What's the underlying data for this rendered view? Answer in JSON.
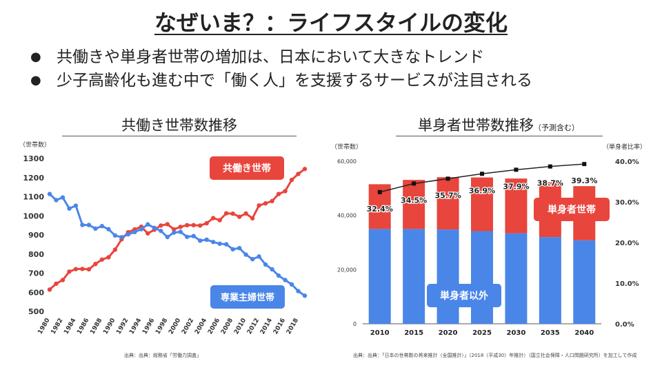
{
  "slide": {
    "title": "なぜいま？：ライフスタイルの変化",
    "bullets": [
      "共働きや単身者世帯の増加は、日本において大きなトレンド",
      "少子高齢化も進む中で「働く人」を支援するサービスが注目される"
    ],
    "left_source": "出典：出典：総務省「労働力調査」",
    "right_source": "出典：出典：「日本の世帯数の将来推計（全国推計）」（2018（平成30）年推計）（国立社会保障・人口問題研究所）を加工して作成"
  },
  "chart_data": [
    {
      "type": "line",
      "title": "共働き世帯数推移",
      "ylabel": "（世帯数）",
      "ylim": [
        500,
        1300
      ],
      "yticks": [
        "500",
        "600",
        "700",
        "800",
        "900",
        "1000",
        "1100",
        "1200",
        "1300"
      ],
      "x": [
        1980,
        1981,
        1982,
        1983,
        1984,
        1985,
        1986,
        1987,
        1988,
        1989,
        1990,
        1991,
        1992,
        1993,
        1994,
        1995,
        1996,
        1997,
        1998,
        1999,
        2000,
        2001,
        2002,
        2003,
        2004,
        2005,
        2006,
        2007,
        2008,
        2009,
        2010,
        2011,
        2012,
        2013,
        2014,
        2015,
        2016,
        2017,
        2018,
        2019
      ],
      "xticks": [
        "1980",
        "1982",
        "1984",
        "1986",
        "1988",
        "1990",
        "1992",
        "1994",
        "1996",
        "1998",
        "2000",
        "2002",
        "2004",
        "2006",
        "2008",
        "2010",
        "2012",
        "2014",
        "2016",
        "2018"
      ],
      "series": [
        {
          "name": "共働き世帯",
          "color": "#e8453c",
          "values": [
            614,
            645,
            664,
            708,
            721,
            722,
            720,
            748,
            771,
            783,
            823,
            877,
            914,
            929,
            943,
            908,
            927,
            949,
            956,
            929,
            942,
            951,
            951,
            949,
            961,
            988,
            977,
            1013,
            1011,
            995,
            1012,
            987,
            1054,
            1065,
            1077,
            1114,
            1129,
            1188,
            1219,
            1245
          ]
        },
        {
          "name": "専業主婦世帯",
          "color": "#4a86e8",
          "values": [
            1114,
            1082,
            1096,
            1038,
            1053,
            952,
            952,
            933,
            946,
            930,
            897,
            888,
            903,
            915,
            930,
            955,
            937,
            921,
            889,
            912,
            916,
            890,
            894,
            870,
            875,
            863,
            854,
            851,
            825,
            831,
            797,
            773,
            787,
            745,
            720,
            687,
            664,
            641,
            606,
            582
          ]
        }
      ],
      "labels": {
        "dual": "共働き世帯",
        "housewife": "専業主婦世帯"
      }
    },
    {
      "type": "bar",
      "title": "単身者世帯数推移",
      "subtitle": "（予測含む）",
      "ylabel_left": "（世帯数）",
      "ylabel_right": "（単身者比率）",
      "ylim": [
        0,
        60000
      ],
      "y2lim": [
        0,
        40
      ],
      "yticks": [
        "0",
        "20,000",
        "40,000",
        "60,000"
      ],
      "y2ticks": [
        "0.0%",
        "10.0%",
        "20.0%",
        "30.0%",
        "40.0%"
      ],
      "categories": [
        "2010",
        "2015",
        "2020",
        "2025",
        "2030",
        "2035",
        "2040"
      ],
      "series": [
        {
          "name": "単身者以外",
          "color": "#4a86e8",
          "values": [
            35000,
            35000,
            34800,
            34200,
            33400,
            32000,
            30800
          ]
        },
        {
          "name": "単身者世帯",
          "color": "#e8453c",
          "values": [
            16500,
            18100,
            19300,
            19800,
            20200,
            20200,
            20000
          ]
        }
      ],
      "ratio": {
        "name": "単身者比率",
        "values": [
          32.4,
          34.5,
          35.7,
          36.9,
          37.9,
          38.7,
          39.3
        ],
        "labels": [
          "32.4%",
          "34.5%",
          "35.7%",
          "36.9%",
          "37.9%",
          "38.7%",
          "39.3%"
        ]
      },
      "labels": {
        "single": "単身者世帯",
        "other": "単身者以外"
      }
    }
  ]
}
